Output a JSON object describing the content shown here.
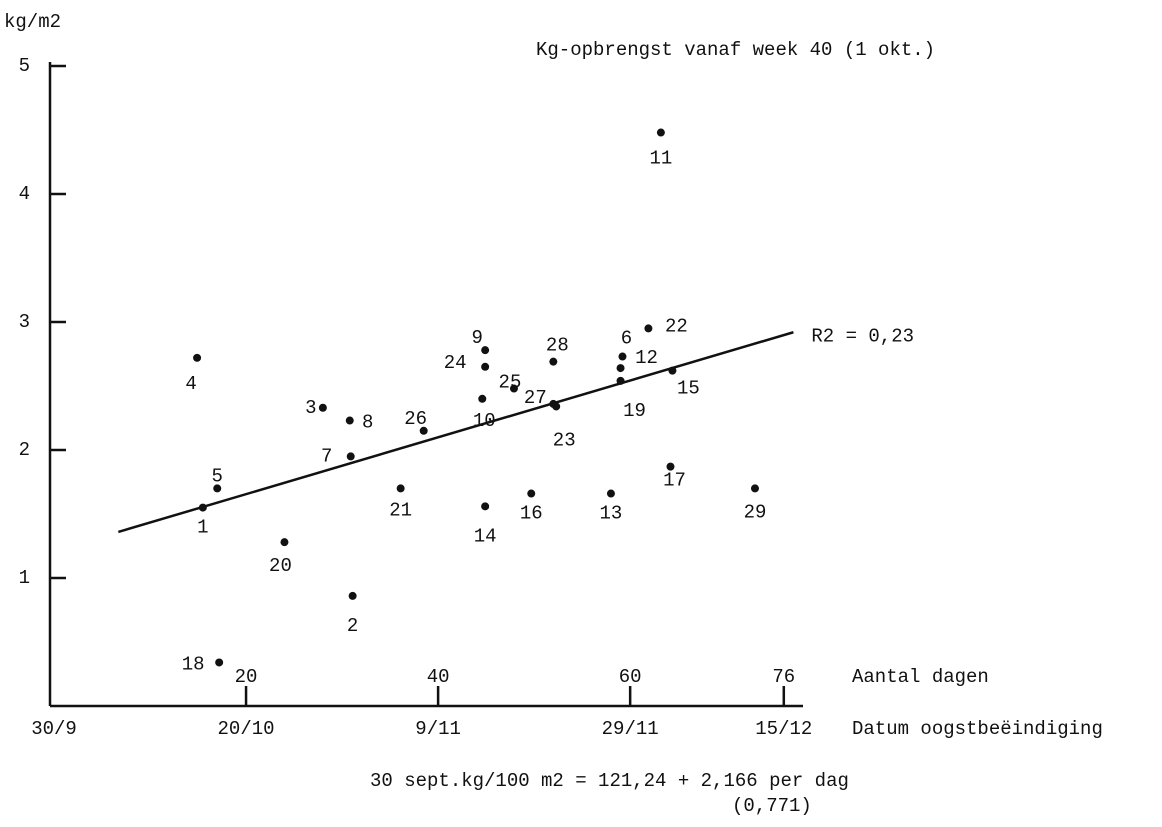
{
  "chart_data": {
    "type": "scatter",
    "title": "Kg-opbrengst vanaf week 40 (1 okt.)",
    "y_label": "kg/m2",
    "x_label": "Aantal dagen",
    "date_label": "Datum oogstbeëindiging",
    "formula": "30 sept.kg/100 m2 = 121,24 + 2,166 per dag",
    "formula_note": "(0,771)",
    "annotation": "R2 = 0,23",
    "labels": [
      "1",
      "2",
      "3",
      "4",
      "5",
      "6",
      "7",
      "8",
      "9",
      "10",
      "11",
      "12",
      "13",
      "14",
      "15",
      "16",
      "17",
      "18",
      "19",
      "20",
      "21",
      "22",
      "23",
      "24",
      "25",
      "26",
      "27",
      "28",
      "29"
    ],
    "x": [
      15.5,
      31.1,
      28.0,
      14.9,
      17.0,
      59.2,
      30.9,
      30.8,
      44.9,
      44.6,
      63.2,
      59.0,
      58.0,
      44.9,
      64.4,
      49.7,
      64.2,
      17.2,
      59.0,
      24.0,
      36.1,
      61.9,
      52.3,
      44.9,
      47.9,
      38.5,
      52.0,
      52.0,
      73.0
    ],
    "values": [
      1.55,
      0.86,
      2.33,
      2.72,
      1.7,
      2.73,
      1.95,
      2.23,
      2.78,
      2.4,
      4.48,
      2.64,
      1.66,
      1.56,
      2.62,
      1.66,
      1.87,
      0.34,
      2.54,
      1.28,
      1.7,
      2.95,
      2.34,
      2.65,
      2.48,
      2.15,
      2.36,
      2.69,
      1.7
    ],
    "color": "#111111",
    "trend_line": {
      "x": [
        6.7,
        77
      ],
      "values": [
        1.36,
        2.92
      ]
    },
    "xlim": [
      0,
      78
    ],
    "xticks": [
      20,
      40,
      60,
      76
    ],
    "date_ticks": [
      {
        "value": 0,
        "label": "30/9"
      },
      {
        "value": 20,
        "label": "20/10"
      },
      {
        "value": 40,
        "label": "9/11"
      },
      {
        "value": 60,
        "label": "29/11"
      },
      {
        "value": 76,
        "label": "15/12"
      }
    ],
    "ylim": [
      0,
      5
    ],
    "yticks": [
      1,
      2,
      3,
      4,
      5
    ]
  }
}
